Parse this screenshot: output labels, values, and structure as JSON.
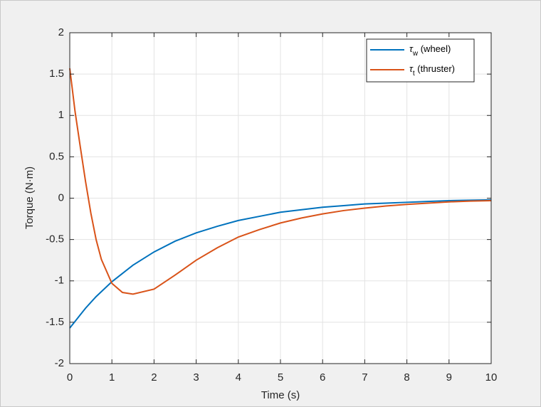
{
  "chart_data": {
    "type": "line",
    "x_label": "Time (s)",
    "y_label": "Torque (N·m)",
    "x": [
      0,
      0.125,
      0.25,
      0.375,
      0.5,
      0.625,
      0.75,
      1,
      1.25,
      1.5,
      2,
      2.5,
      3,
      3.5,
      4,
      4.5,
      5,
      5.5,
      6,
      6.5,
      7,
      7.5,
      8,
      8.5,
      9,
      9.5,
      10
    ],
    "series": [
      {
        "name": "τw (wheel)",
        "color": "#0072bd",
        "values": [
          -1.57,
          -1.49,
          -1.41,
          -1.33,
          -1.26,
          -1.19,
          -1.13,
          -1.01,
          -0.91,
          -0.81,
          -0.65,
          -0.52,
          -0.42,
          -0.34,
          -0.27,
          -0.22,
          -0.17,
          -0.14,
          -0.11,
          -0.09,
          -0.07,
          -0.06,
          -0.05,
          -0.04,
          -0.03,
          -0.025,
          -0.02
        ]
      },
      {
        "name": "τt (thruster)",
        "color": "#d95319",
        "values": [
          1.57,
          1.05,
          0.62,
          0.2,
          -0.18,
          -0.5,
          -0.74,
          -1.03,
          -1.14,
          -1.16,
          -1.1,
          -0.93,
          -0.75,
          -0.6,
          -0.47,
          -0.38,
          -0.3,
          -0.24,
          -0.19,
          -0.15,
          -0.12,
          -0.095,
          -0.075,
          -0.06,
          -0.045,
          -0.035,
          -0.03
        ]
      }
    ],
    "xlim": [
      0,
      10
    ],
    "ylim": [
      -2,
      2
    ],
    "xticks": [
      0,
      1,
      2,
      3,
      4,
      5,
      6,
      7,
      8,
      9,
      10
    ],
    "yticks": [
      -2,
      -1.5,
      -1,
      -0.5,
      0,
      0.5,
      1,
      1.5,
      2
    ],
    "grid": true,
    "legend": "northeast"
  }
}
